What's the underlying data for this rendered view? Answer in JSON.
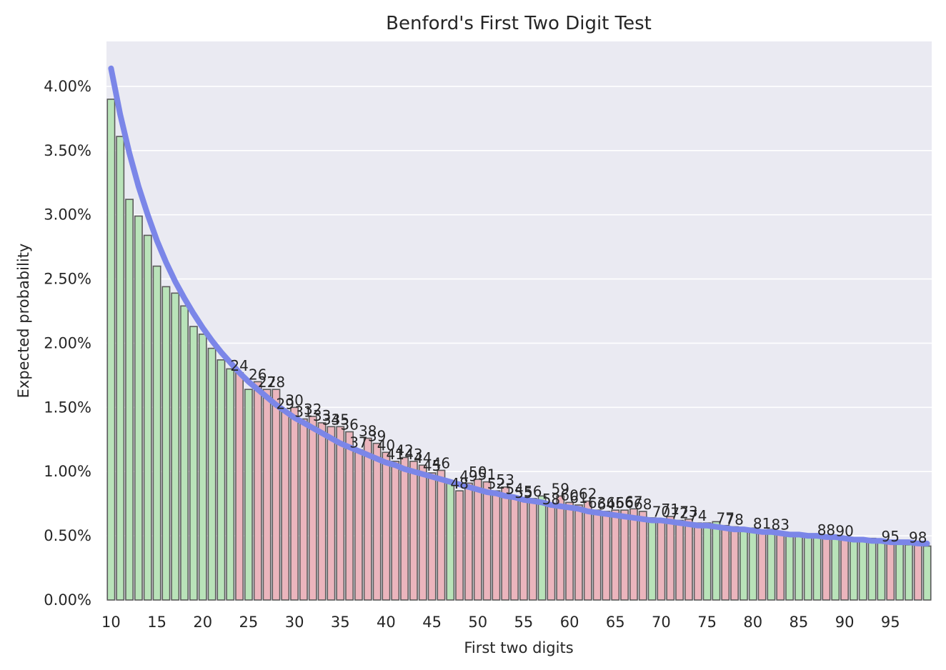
{
  "chart_data": {
    "type": "bar",
    "title": "Benford's First Two Digit Test",
    "xlabel": "First two digits",
    "ylabel": "Expected probability",
    "ylim": [
      0,
      0.0435
    ],
    "xlim": [
      9.5,
      99.5
    ],
    "grid": true,
    "y_ticks": [
      "0.00%",
      "0.50%",
      "1.00%",
      "1.50%",
      "2.00%",
      "2.50%",
      "3.00%",
      "3.50%",
      "4.00%"
    ],
    "y_tick_values": [
      0,
      0.005,
      0.01,
      0.015,
      0.02,
      0.025,
      0.03,
      0.035,
      0.04
    ],
    "x_ticks": [
      "10",
      "15",
      "20",
      "25",
      "30",
      "35",
      "40",
      "45",
      "50",
      "55",
      "60",
      "65",
      "70",
      "75",
      "80",
      "85",
      "90",
      "95"
    ],
    "x_tick_values": [
      10,
      15,
      20,
      25,
      30,
      35,
      40,
      45,
      50,
      55,
      60,
      65,
      70,
      75,
      80,
      85,
      90,
      95
    ],
    "colors": {
      "within": "#b9e3b9",
      "deviating": "#ebb5bd",
      "expected_line": "#7b86e8",
      "bar_edge": "#5a5a5a",
      "plot_bg": "#eaeaf2",
      "grid": "#ffffff"
    },
    "legend": "none",
    "observed_start": 10,
    "observed": [
      0.039,
      0.0361,
      0.0312,
      0.0299,
      0.0284,
      0.026,
      0.0244,
      0.0239,
      0.0229,
      0.0213,
      0.0207,
      0.0196,
      0.0187,
      0.018,
      0.0177,
      0.0164,
      0.017,
      0.0164,
      0.0164,
      0.0147,
      0.015,
      0.0141,
      0.0143,
      0.0138,
      0.0135,
      0.0135,
      0.0131,
      0.0117,
      0.0126,
      0.0122,
      0.0115,
      0.0108,
      0.0111,
      0.0108,
      0.0105,
      0.0099,
      0.0101,
      0.0092,
      0.0085,
      0.0091,
      0.0094,
      0.0092,
      0.0085,
      0.0088,
      0.0081,
      0.0078,
      0.0079,
      0.0081,
      0.0073,
      0.0081,
      0.0076,
      0.0074,
      0.0077,
      0.007,
      0.0069,
      0.007,
      0.007,
      0.0071,
      0.0069,
      0.0064,
      0.0063,
      0.0065,
      0.0062,
      0.0063,
      0.006,
      0.006,
      0.0061,
      0.0058,
      0.0057,
      0.0056,
      0.0056,
      0.0054,
      0.0055,
      0.0053,
      0.0052,
      0.005,
      0.0051,
      0.0049,
      0.0049,
      0.0048,
      0.0048,
      0.0046,
      0.0047,
      0.0048,
      0.0045,
      0.0044,
      0.0044,
      0.0043,
      0.0043,
      0.0042
    ],
    "flagged": [
      24,
      26,
      27,
      28,
      29,
      30,
      31,
      32,
      33,
      34,
      35,
      36,
      37,
      38,
      39,
      40,
      41,
      42,
      43,
      44,
      45,
      46,
      48,
      49,
      50,
      51,
      52,
      53,
      54,
      55,
      56,
      58,
      59,
      60,
      61,
      62,
      63,
      64,
      65,
      66,
      67,
      68,
      70,
      71,
      72,
      73,
      74,
      77,
      78,
      81,
      83,
      88,
      90,
      95,
      98
    ],
    "expected_line": {
      "name": "Expected probability",
      "x_start": 10,
      "values": [
        0.0414,
        0.0378,
        0.0348,
        0.0322,
        0.03,
        0.028,
        0.0263,
        0.0248,
        0.0235,
        0.0223,
        0.0212,
        0.0202,
        0.0193,
        0.0185,
        0.0177,
        0.017,
        0.0164,
        0.0158,
        0.0152,
        0.0147,
        0.0142,
        0.0138,
        0.0134,
        0.013,
        0.0126,
        0.0122,
        0.0119,
        0.0116,
        0.0113,
        0.011,
        0.0107,
        0.0105,
        0.0102,
        0.01,
        0.0098,
        0.0096,
        0.0094,
        0.0092,
        0.009,
        0.0088,
        0.0086,
        0.0084,
        0.0083,
        0.0081,
        0.008,
        0.0078,
        0.0077,
        0.0076,
        0.0074,
        0.0073,
        0.0072,
        0.0071,
        0.0069,
        0.0068,
        0.0067,
        0.0066,
        0.0065,
        0.0064,
        0.0063,
        0.0062,
        0.0062,
        0.0061,
        0.006,
        0.0059,
        0.0058,
        0.0058,
        0.0057,
        0.0056,
        0.0055,
        0.0055,
        0.0054,
        0.0053,
        0.0053,
        0.0052,
        0.0051,
        0.0051,
        0.005,
        0.005,
        0.0049,
        0.0049,
        0.0048,
        0.0047,
        0.0047,
        0.0046,
        0.0046,
        0.0045,
        0.0045,
        0.0045,
        0.0044,
        0.0044
      ]
    }
  }
}
